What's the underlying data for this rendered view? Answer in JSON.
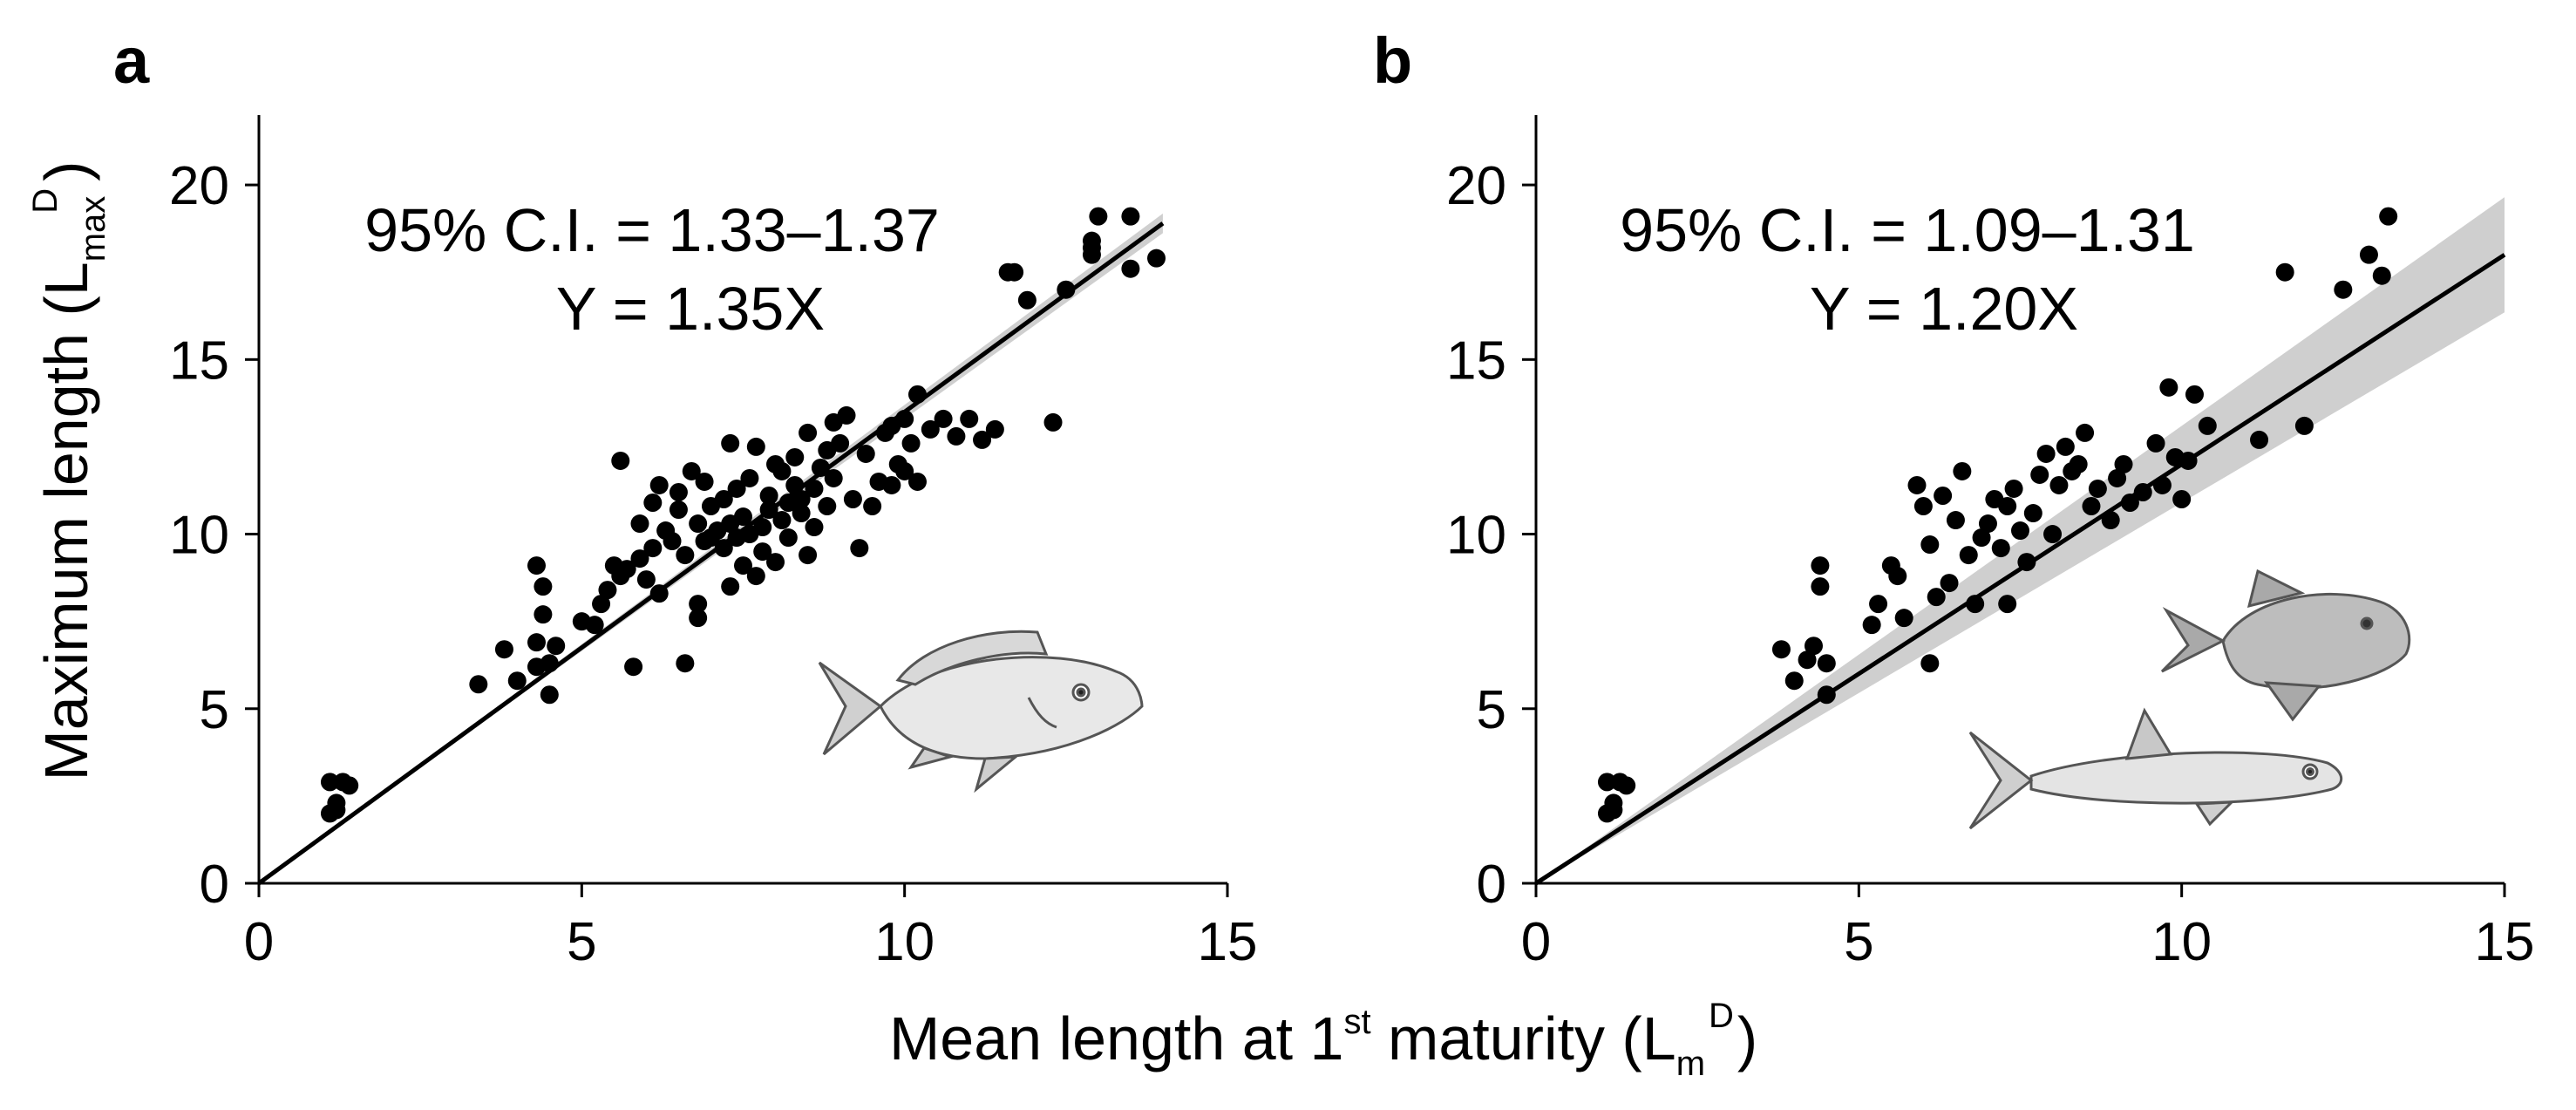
{
  "chart_data": [
    {
      "type": "scatter",
      "panel": "a",
      "annotation": {
        "ci": "95% C.I. = 1.33–1.37",
        "equation": "Y = 1.35X"
      },
      "fit": {
        "slope": 1.35,
        "ci_low": 1.33,
        "ci_high": 1.37,
        "x_end": 14
      },
      "xlim": [
        0,
        15
      ],
      "ylim": [
        0,
        22
      ],
      "xticks": [
        0,
        5,
        10,
        15
      ],
      "yticks": [
        0,
        5,
        10,
        15,
        20
      ],
      "illustrations": [
        "fish-snapper-icon"
      ],
      "points": [
        [
          1.1,
          2.9
        ],
        [
          1.2,
          2.3
        ],
        [
          1.3,
          2.9
        ],
        [
          1.2,
          2.1
        ],
        [
          1.4,
          2.8
        ],
        [
          1.1,
          2.0
        ],
        [
          3.4,
          5.7
        ],
        [
          3.8,
          6.7
        ],
        [
          4.0,
          5.8
        ],
        [
          4.3,
          6.2
        ],
        [
          4.3,
          6.9
        ],
        [
          4.4,
          7.7
        ],
        [
          4.4,
          8.5
        ],
        [
          4.3,
          9.1
        ],
        [
          4.5,
          5.4
        ],
        [
          4.6,
          6.8
        ],
        [
          4.5,
          6.3
        ],
        [
          5.0,
          7.5
        ],
        [
          5.2,
          7.4
        ],
        [
          5.3,
          8.0
        ],
        [
          5.4,
          8.4
        ],
        [
          5.5,
          9.1
        ],
        [
          5.6,
          8.8
        ],
        [
          5.7,
          9.0
        ],
        [
          5.6,
          12.1
        ],
        [
          5.8,
          6.2
        ],
        [
          5.9,
          9.3
        ],
        [
          5.9,
          10.3
        ],
        [
          6.0,
          8.7
        ],
        [
          6.1,
          9.6
        ],
        [
          6.1,
          10.9
        ],
        [
          6.2,
          11.4
        ],
        [
          6.2,
          8.3
        ],
        [
          6.3,
          10.1
        ],
        [
          6.4,
          9.8
        ],
        [
          6.5,
          10.7
        ],
        [
          6.5,
          11.2
        ],
        [
          6.6,
          6.3
        ],
        [
          6.6,
          9.4
        ],
        [
          6.7,
          11.8
        ],
        [
          6.8,
          8.0
        ],
        [
          6.8,
          7.6
        ],
        [
          6.8,
          10.3
        ],
        [
          6.9,
          11.5
        ],
        [
          6.9,
          9.8
        ],
        [
          7.0,
          9.9
        ],
        [
          7.0,
          10.8
        ],
        [
          7.1,
          10.1
        ],
        [
          7.2,
          9.6
        ],
        [
          7.2,
          11.0
        ],
        [
          7.3,
          10.3
        ],
        [
          7.3,
          12.6
        ],
        [
          7.3,
          8.5
        ],
        [
          7.4,
          9.9
        ],
        [
          7.4,
          11.3
        ],
        [
          7.5,
          10.5
        ],
        [
          7.5,
          9.1
        ],
        [
          7.6,
          10.0
        ],
        [
          7.6,
          11.6
        ],
        [
          7.7,
          12.5
        ],
        [
          7.7,
          8.8
        ],
        [
          7.8,
          10.2
        ],
        [
          7.8,
          9.5
        ],
        [
          7.9,
          11.1
        ],
        [
          7.9,
          10.7
        ],
        [
          8.0,
          9.2
        ],
        [
          8.0,
          12.0
        ],
        [
          8.1,
          10.4
        ],
        [
          8.1,
          11.8
        ],
        [
          8.2,
          10.9
        ],
        [
          8.2,
          9.9
        ],
        [
          8.3,
          11.4
        ],
        [
          8.3,
          12.2
        ],
        [
          8.4,
          10.6
        ],
        [
          8.4,
          11.0
        ],
        [
          8.5,
          12.9
        ],
        [
          8.5,
          9.4
        ],
        [
          8.6,
          11.3
        ],
        [
          8.6,
          10.2
        ],
        [
          8.7,
          11.9
        ],
        [
          8.8,
          12.4
        ],
        [
          8.8,
          10.8
        ],
        [
          8.9,
          13.2
        ],
        [
          8.9,
          11.6
        ],
        [
          9.0,
          12.6
        ],
        [
          9.1,
          13.4
        ],
        [
          9.2,
          11.0
        ],
        [
          9.3,
          9.6
        ],
        [
          9.4,
          12.3
        ],
        [
          9.5,
          10.8
        ],
        [
          9.6,
          11.5
        ],
        [
          9.7,
          12.9
        ],
        [
          9.8,
          13.1
        ],
        [
          9.8,
          11.4
        ],
        [
          9.9,
          12.0
        ],
        [
          10.0,
          11.8
        ],
        [
          10.0,
          13.3
        ],
        [
          10.1,
          12.6
        ],
        [
          10.2,
          14.0
        ],
        [
          10.2,
          11.5
        ],
        [
          10.4,
          13.0
        ],
        [
          10.6,
          13.3
        ],
        [
          10.8,
          12.8
        ],
        [
          11.0,
          13.3
        ],
        [
          11.2,
          12.7
        ],
        [
          11.4,
          13.0
        ],
        [
          11.6,
          17.5
        ],
        [
          11.7,
          17.5
        ],
        [
          11.9,
          16.7
        ],
        [
          12.3,
          13.2
        ],
        [
          12.5,
          17.0
        ],
        [
          12.9,
          18.0
        ],
        [
          12.9,
          18.4
        ],
        [
          12.9,
          18.2
        ],
        [
          13.0,
          19.1
        ],
        [
          13.5,
          19.1
        ],
        [
          13.5,
          17.6
        ],
        [
          13.9,
          17.9
        ]
      ]
    },
    {
      "type": "scatter",
      "panel": "b",
      "annotation": {
        "ci": "95% C.I. = 1.09–1.31",
        "equation": "Y = 1.20X"
      },
      "fit": {
        "slope": 1.2,
        "ci_low": 1.09,
        "ci_high": 1.31,
        "x_end": 15
      },
      "xlim": [
        0,
        15
      ],
      "ylim": [
        0,
        22
      ],
      "xticks": [
        0,
        5,
        10,
        15
      ],
      "yticks": [
        0,
        5,
        10,
        15,
        20
      ],
      "illustrations": [
        "fish-triggerfish-icon",
        "fish-elongate-icon"
      ],
      "points": [
        [
          1.1,
          2.9
        ],
        [
          1.2,
          2.3
        ],
        [
          1.3,
          2.9
        ],
        [
          1.2,
          2.1
        ],
        [
          1.4,
          2.8
        ],
        [
          1.1,
          2.0
        ],
        [
          3.8,
          6.7
        ],
        [
          4.0,
          5.8
        ],
        [
          4.2,
          6.4
        ],
        [
          4.3,
          6.8
        ],
        [
          4.4,
          8.5
        ],
        [
          4.4,
          9.1
        ],
        [
          4.5,
          6.3
        ],
        [
          4.5,
          5.4
        ],
        [
          5.2,
          7.4
        ],
        [
          5.3,
          8.0
        ],
        [
          5.5,
          9.1
        ],
        [
          5.6,
          8.8
        ],
        [
          5.7,
          7.6
        ],
        [
          5.9,
          11.4
        ],
        [
          6.0,
          10.8
        ],
        [
          6.1,
          9.7
        ],
        [
          6.1,
          6.3
        ],
        [
          6.2,
          8.2
        ],
        [
          6.3,
          11.1
        ],
        [
          6.4,
          8.6
        ],
        [
          6.5,
          10.4
        ],
        [
          6.6,
          11.8
        ],
        [
          6.7,
          9.4
        ],
        [
          6.8,
          8.0
        ],
        [
          6.9,
          9.9
        ],
        [
          7.0,
          10.3
        ],
        [
          7.1,
          11.0
        ],
        [
          7.2,
          9.6
        ],
        [
          7.3,
          10.8
        ],
        [
          7.3,
          8.0
        ],
        [
          7.4,
          11.3
        ],
        [
          7.5,
          10.1
        ],
        [
          7.6,
          9.2
        ],
        [
          7.7,
          10.6
        ],
        [
          7.8,
          11.7
        ],
        [
          7.9,
          12.3
        ],
        [
          8.0,
          10.0
        ],
        [
          8.1,
          11.4
        ],
        [
          8.2,
          12.5
        ],
        [
          8.3,
          11.8
        ],
        [
          8.4,
          12.0
        ],
        [
          8.5,
          12.9
        ],
        [
          8.6,
          10.8
        ],
        [
          8.7,
          11.3
        ],
        [
          8.9,
          10.4
        ],
        [
          9.0,
          11.6
        ],
        [
          9.1,
          12.0
        ],
        [
          9.2,
          10.9
        ],
        [
          9.4,
          11.2
        ],
        [
          9.6,
          12.6
        ],
        [
          9.7,
          11.4
        ],
        [
          9.8,
          14.2
        ],
        [
          9.9,
          12.2
        ],
        [
          10.0,
          11.0
        ],
        [
          10.1,
          12.1
        ],
        [
          10.2,
          14.0
        ],
        [
          10.4,
          13.1
        ],
        [
          11.2,
          12.7
        ],
        [
          11.6,
          17.5
        ],
        [
          11.9,
          13.1
        ],
        [
          12.5,
          17.0
        ],
        [
          12.9,
          18.0
        ],
        [
          13.1,
          17.4
        ],
        [
          13.2,
          19.1
        ]
      ]
    }
  ],
  "figure": {
    "y_axis_title": {
      "main": "Maximum length (L",
      "sub": "max",
      "sup": "D",
      "close": ")"
    },
    "x_axis_title": {
      "main": "Mean length at 1",
      "ordinal_sup": "st",
      "mid": " maturity (L",
      "sub": "m",
      "sup": "D",
      "close": ")"
    }
  }
}
